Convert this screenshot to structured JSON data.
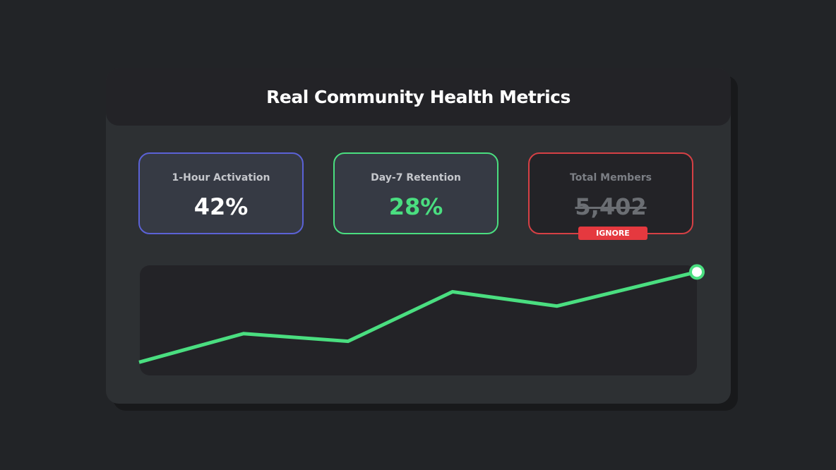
{
  "header": {
    "title": "Real Community Health Metrics"
  },
  "metrics": [
    {
      "label": "1-Hour Activation",
      "value": "42%",
      "color": "#5b62d6"
    },
    {
      "label": "Day-7 Retention",
      "value": "28%",
      "color": "#4ade80"
    },
    {
      "label": "Total Members",
      "value": "5,402",
      "color": "#d64045",
      "badge": "IGNORE",
      "struck": true
    }
  ],
  "chart_data": {
    "type": "line",
    "title": "",
    "xlabel": "",
    "ylabel": "",
    "x": [
      0,
      1,
      2,
      3,
      4,
      5.34
    ],
    "series": [
      {
        "values": [
          12,
          38,
          31,
          76,
          63,
          94
        ],
        "color": "#4ade80"
      }
    ],
    "ylim": [
      0,
      100
    ],
    "grid": false,
    "end_marker": true
  }
}
